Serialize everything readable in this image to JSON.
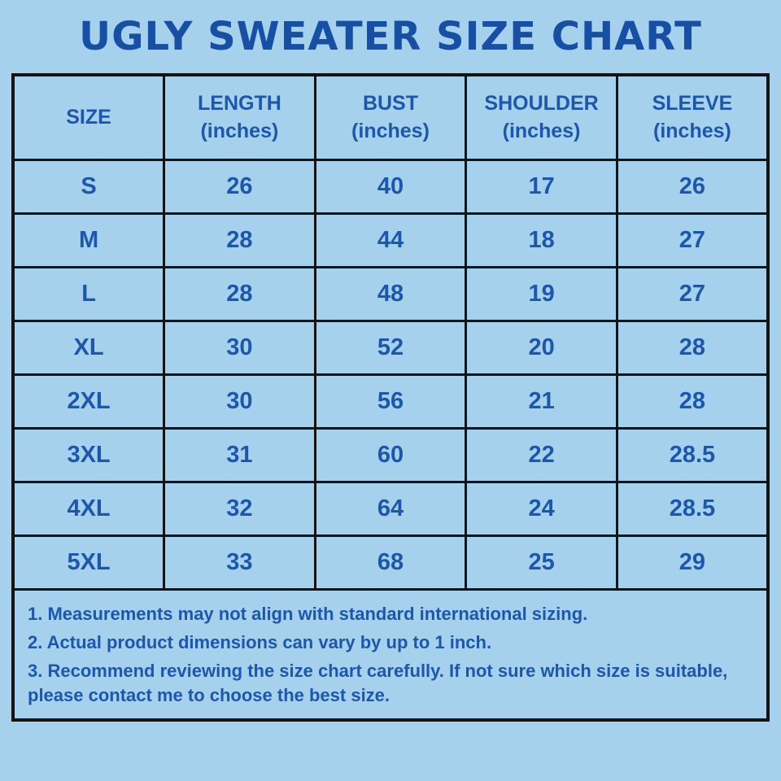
{
  "page": {
    "title": "UGLY SWEATER SIZE CHART"
  },
  "colors": {
    "background": "#a5d1ec",
    "text_blue": "#1d57ab",
    "title_blue": "#164fa4",
    "border": "#131313"
  },
  "chart_data": {
    "type": "table",
    "title": "UGLY SWEATER SIZE CHART",
    "columns": [
      {
        "label": "SIZE",
        "unit": ""
      },
      {
        "label": "LENGTH",
        "unit": "(inches)"
      },
      {
        "label": "BUST",
        "unit": "(inches)"
      },
      {
        "label": "SHOULDER",
        "unit": "(inches)"
      },
      {
        "label": "SLEEVE",
        "unit": "(inches)"
      }
    ],
    "rows": [
      [
        "S",
        "26",
        "40",
        "17",
        "26"
      ],
      [
        "M",
        "28",
        "44",
        "18",
        "27"
      ],
      [
        "L",
        "28",
        "48",
        "19",
        "27"
      ],
      [
        "XL",
        "30",
        "52",
        "20",
        "28"
      ],
      [
        "2XL",
        "30",
        "56",
        "21",
        "28"
      ],
      [
        "3XL",
        "31",
        "60",
        "22",
        "28.5"
      ],
      [
        "4XL",
        "32",
        "64",
        "24",
        "28.5"
      ],
      [
        "5XL",
        "33",
        "68",
        "25",
        "29"
      ]
    ],
    "notes": [
      "1. Measurements may not align with standard international sizing.",
      "2. Actual product dimensions can vary by up to 1 inch.",
      "3. Recommend reviewing the size chart carefully. If not sure which size is suitable, please contact me to choose the best size."
    ]
  }
}
